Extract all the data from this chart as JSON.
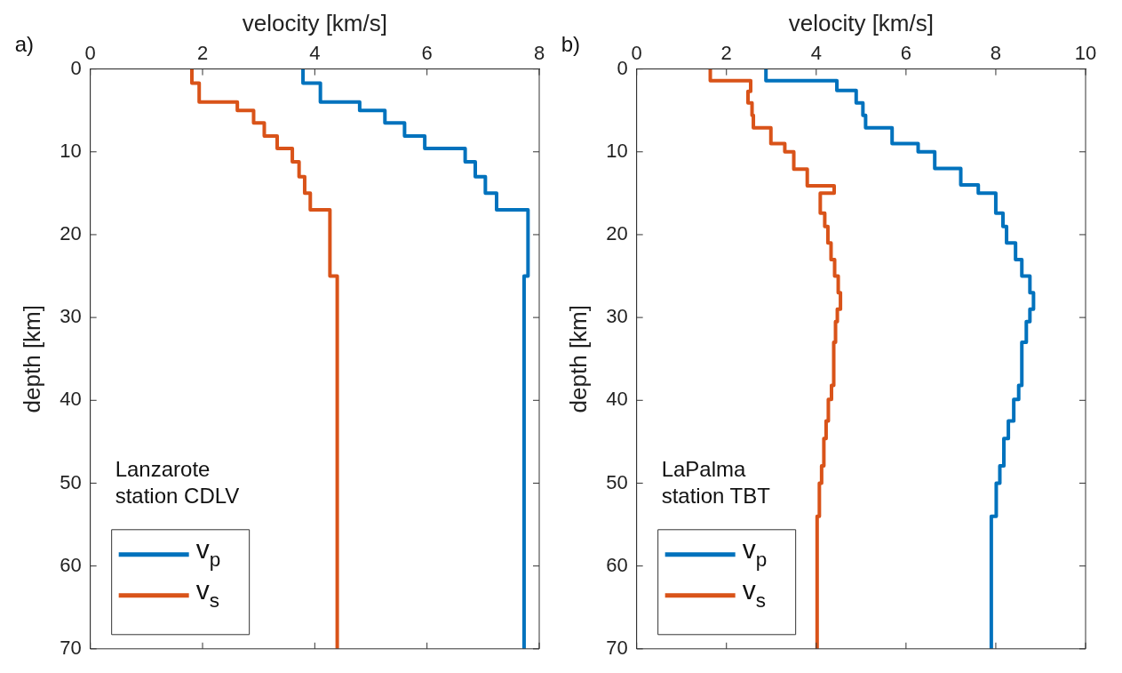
{
  "chart_data": [
    {
      "type": "line",
      "title": "a)",
      "xlabel": "velocity [km/s]",
      "ylabel": "depth [km]",
      "xlim": [
        0,
        8
      ],
      "xticks": [
        0,
        2,
        4,
        6,
        8
      ],
      "ylim": [
        70,
        0
      ],
      "yticks": [
        0,
        10,
        20,
        30,
        40,
        50,
        60,
        70
      ],
      "grid": false,
      "legend": "bottom left",
      "line_style": "solid",
      "annotations": [
        "Lanzarote\nstation CDLV"
      ],
      "series": [
        {
          "name": "v$_{p}$",
          "color": "#0072bd",
          "x": [
            3.79,
            3.79,
            4.1,
            4.1,
            4.8,
            4.8,
            5.25,
            5.25,
            5.6,
            5.6,
            5.96,
            5.96,
            6.68,
            6.68,
            6.86,
            6.86,
            7.04,
            7.04,
            7.24,
            7.24,
            7.8,
            7.8,
            7.73,
            7.73
          ],
          "values": [
            0,
            1.7,
            1.7,
            4.0,
            4.0,
            5.0,
            5.0,
            6.5,
            6.5,
            8.1,
            8.1,
            9.6,
            9.6,
            11.2,
            11.2,
            13.0,
            13.0,
            15.0,
            15.0,
            17.0,
            17.0,
            25.0,
            25.0,
            70
          ]
        },
        {
          "name": "v$_{s}$",
          "color": "#d95319",
          "x": [
            1.81,
            1.81,
            1.94,
            1.94,
            2.62,
            2.62,
            2.91,
            2.91,
            3.1,
            3.1,
            3.33,
            3.33,
            3.6,
            3.6,
            3.72,
            3.72,
            3.82,
            3.82,
            3.92,
            3.92,
            4.27,
            4.27,
            4.4,
            4.4
          ],
          "values": [
            0,
            1.7,
            1.7,
            4.0,
            4.0,
            5.0,
            5.0,
            6.5,
            6.5,
            8.1,
            8.1,
            9.6,
            9.6,
            11.2,
            11.2,
            13.0,
            13.0,
            15.0,
            15.0,
            17.0,
            17.0,
            25.0,
            25.0,
            70
          ]
        }
      ]
    },
    {
      "type": "line",
      "title": "b)",
      "xlabel": "velocity [km/s]",
      "ylabel": "depth [km]",
      "xlim": [
        0,
        10
      ],
      "xticks": [
        0,
        2,
        4,
        6,
        8,
        10
      ],
      "ylim": [
        70,
        0
      ],
      "yticks": [
        0,
        10,
        20,
        30,
        40,
        50,
        60,
        70
      ],
      "grid": false,
      "legend": "bottom left",
      "line_style": "solid",
      "annotations": [
        "LaPalma\nstation TBT"
      ],
      "series": [
        {
          "name": "v$_{p}$",
          "color": "#0072bd",
          "x": [
            2.88,
            2.88,
            4.46,
            4.46,
            4.89,
            4.89,
            5.04,
            5.04,
            5.1,
            5.1,
            5.69,
            5.69,
            6.27,
            6.27,
            6.64,
            6.64,
            7.22,
            7.22,
            7.61,
            7.61,
            8.0,
            8.0,
            8.16,
            8.16,
            8.24,
            8.24,
            8.44,
            8.44,
            8.58,
            8.58,
            8.76,
            8.76,
            8.84,
            8.84,
            8.76,
            8.76,
            8.68,
            8.68,
            8.58,
            8.58,
            8.51,
            8.51,
            8.4,
            8.4,
            8.28,
            8.28,
            8.18,
            8.18,
            8.09,
            8.09,
            8.01,
            8.01,
            7.9,
            7.9
          ],
          "values": [
            0,
            1.4,
            1.4,
            2.6,
            2.6,
            4.1,
            4.1,
            5.6,
            5.6,
            7.1,
            7.1,
            9.0,
            9.0,
            10.0,
            10.0,
            12.0,
            12.0,
            14.0,
            14.0,
            15.0,
            15.0,
            17.4,
            17.4,
            19.0,
            19.0,
            21.0,
            21.0,
            23.0,
            23.0,
            25.0,
            25.0,
            27.0,
            27.0,
            29.0,
            29.0,
            30.5,
            30.5,
            33.0,
            33.0,
            38.2,
            38.2,
            39.9,
            39.9,
            42.5,
            42.5,
            44.6,
            44.6,
            47.9,
            47.9,
            50.0,
            50.0,
            54.0,
            54.0,
            70
          ]
        },
        {
          "name": "v$_{s}$",
          "color": "#d95319",
          "x": [
            1.64,
            1.64,
            2.54,
            2.54,
            2.48,
            2.48,
            2.57,
            2.57,
            2.6,
            2.6,
            2.99,
            2.99,
            3.3,
            3.3,
            3.5,
            3.5,
            3.8,
            3.8,
            4.4,
            4.4,
            4.09,
            4.09,
            4.19,
            4.19,
            4.26,
            4.26,
            4.33,
            4.33,
            4.41,
            4.41,
            4.49,
            4.49,
            4.54,
            4.54,
            4.47,
            4.47,
            4.43,
            4.43,
            4.39,
            4.39,
            4.34,
            4.34,
            4.27,
            4.27,
            4.22,
            4.22,
            4.17,
            4.17,
            4.12,
            4.12,
            4.07,
            4.07,
            4.02,
            4.02
          ],
          "values": [
            0,
            1.4,
            1.4,
            2.7,
            2.7,
            4.1,
            4.1,
            5.6,
            5.6,
            7.1,
            7.1,
            9.0,
            9.0,
            10.0,
            10.0,
            12.1,
            12.1,
            14.1,
            14.1,
            15.0,
            15.0,
            17.4,
            17.4,
            19.0,
            19.0,
            21.0,
            21.0,
            23.0,
            23.0,
            25.0,
            25.0,
            27.0,
            27.0,
            29.0,
            29.0,
            30.5,
            30.5,
            33.0,
            33.0,
            38.2,
            38.2,
            39.9,
            39.9,
            42.5,
            42.5,
            44.6,
            44.6,
            47.9,
            47.9,
            50.0,
            50.0,
            54.0,
            54.0,
            70
          ]
        }
      ]
    }
  ]
}
